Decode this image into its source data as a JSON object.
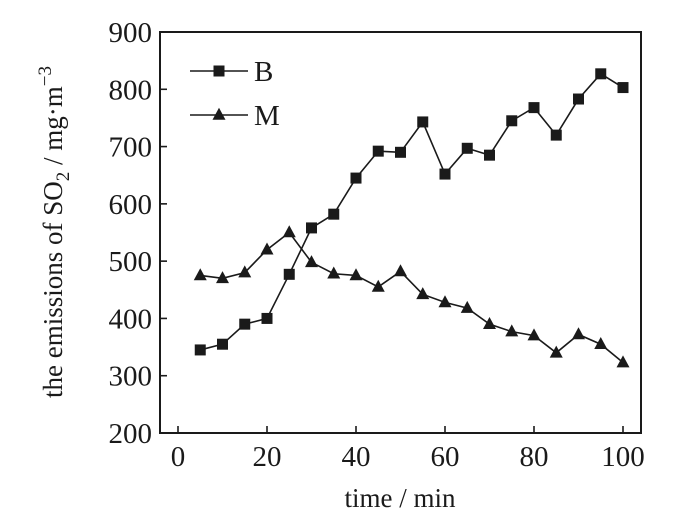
{
  "chart_data": {
    "type": "line",
    "xlabel": "time / min",
    "ylabel": {
      "prefix": "the emissions of SO",
      "sub": "2",
      "units": " / mg·m",
      "sup": "−3"
    },
    "xlim": [
      0,
      100
    ],
    "ylim": [
      200,
      900
    ],
    "xticks": [
      0,
      20,
      40,
      60,
      80,
      100
    ],
    "yticks": [
      200,
      300,
      400,
      500,
      600,
      700,
      800,
      900
    ],
    "grid": false,
    "legend_position": "top-left",
    "x": [
      5,
      10,
      15,
      20,
      25,
      30,
      35,
      40,
      45,
      50,
      55,
      60,
      65,
      70,
      75,
      80,
      85,
      90,
      95,
      100
    ],
    "series": [
      {
        "name": "B",
        "marker": "square",
        "color": "#1a1a1a",
        "values": [
          345,
          355,
          390,
          400,
          477,
          558,
          582,
          645,
          692,
          690,
          743,
          652,
          697,
          685,
          745,
          768,
          720,
          783,
          827,
          803
        ]
      },
      {
        "name": "M",
        "marker": "triangle",
        "color": "#1a1a1a",
        "values": [
          475,
          470,
          480,
          520,
          550,
          498,
          478,
          475,
          455,
          482,
          442,
          428,
          418,
          390,
          377,
          370,
          340,
          372,
          355,
          323
        ]
      }
    ]
  }
}
